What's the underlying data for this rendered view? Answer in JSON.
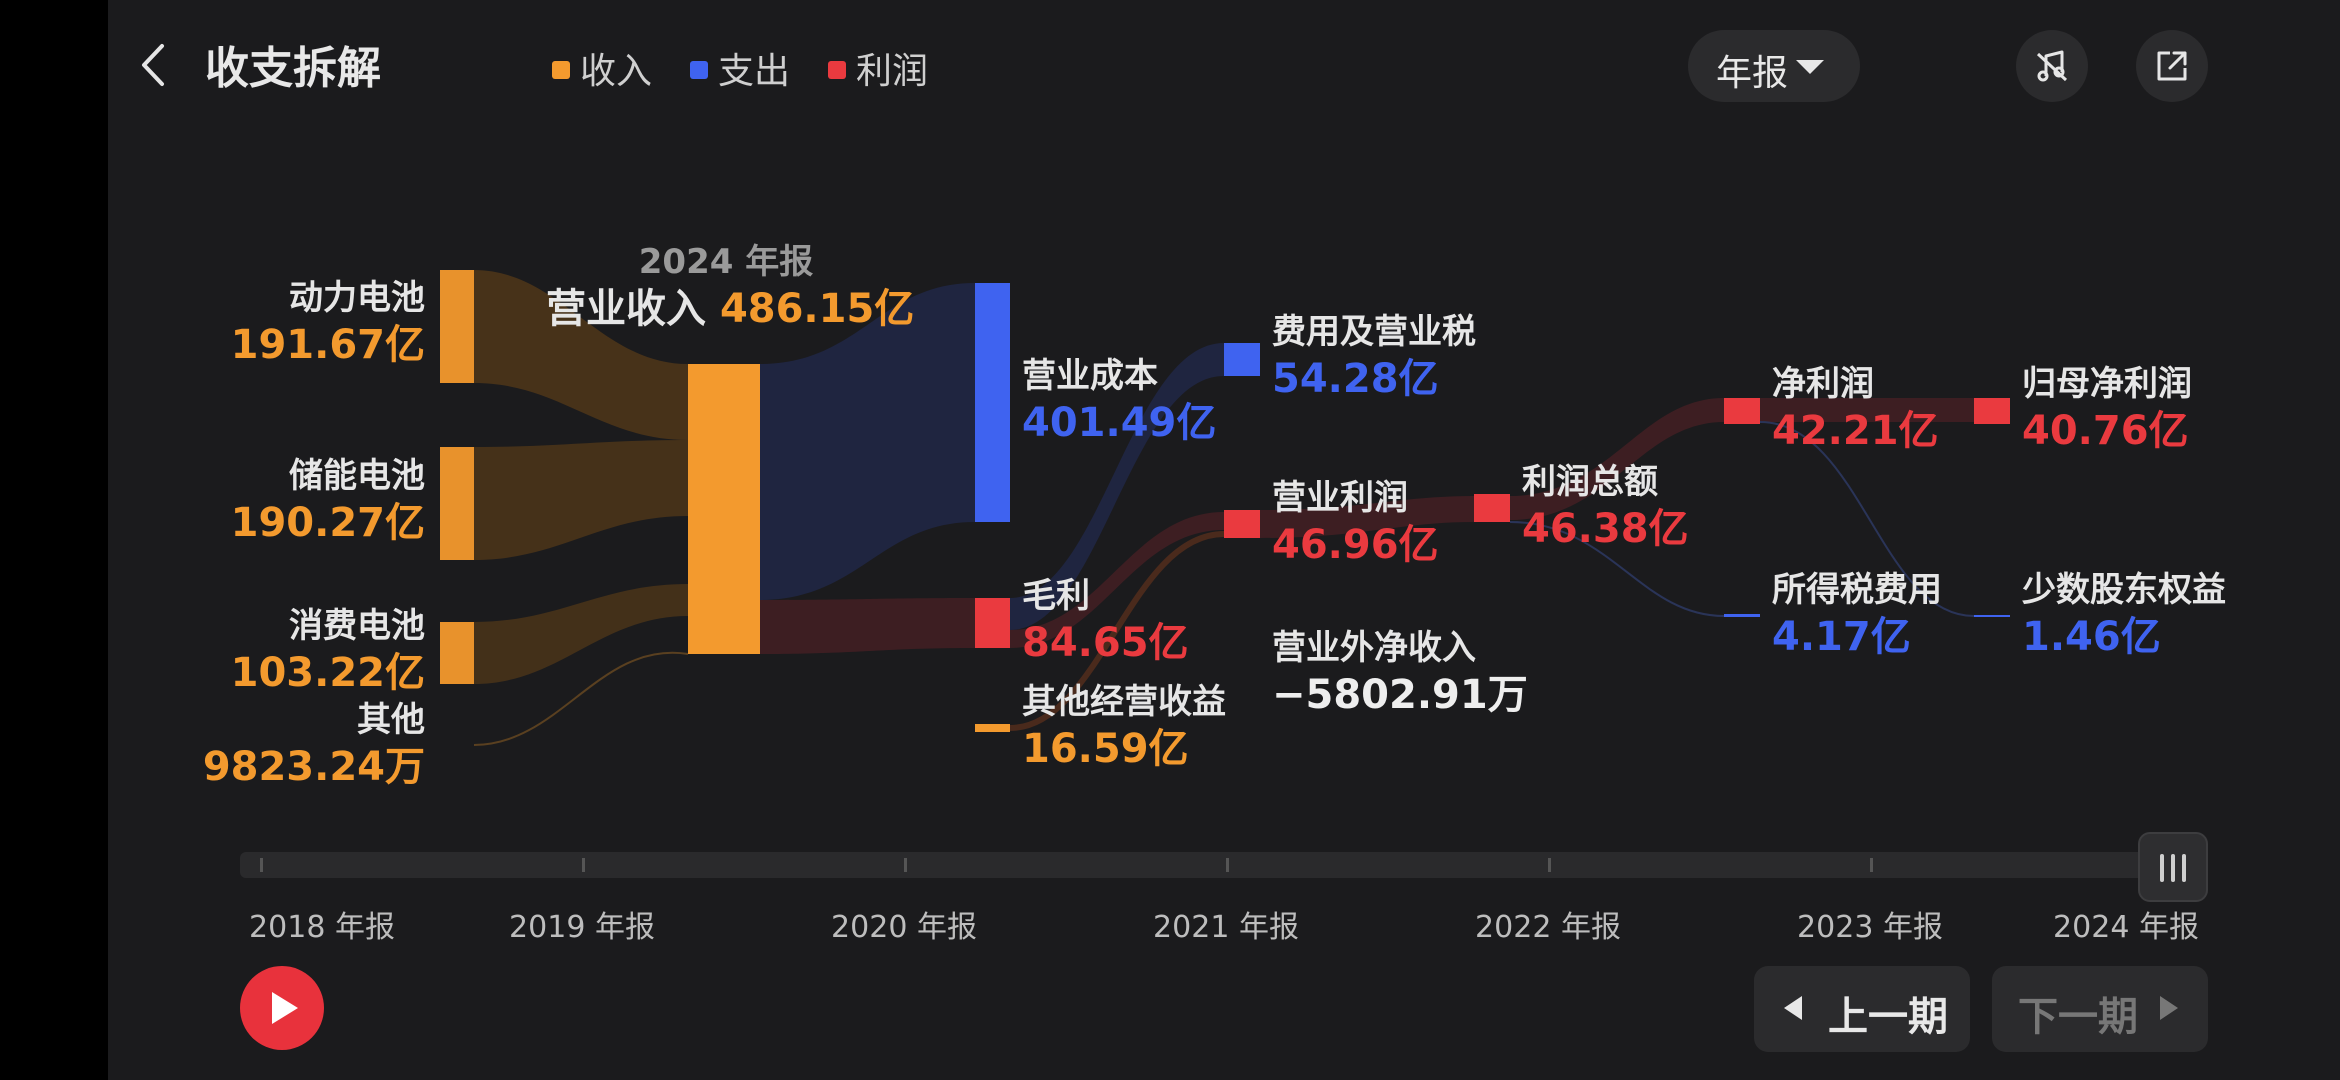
{
  "header": {
    "title": "收支拆解",
    "legend": [
      {
        "label": "收入",
        "color": "#f39a2e"
      },
      {
        "label": "支出",
        "color": "#3f63f0"
      },
      {
        "label": "利润",
        "color": "#ea3a3f"
      }
    ],
    "period_selector": "年报",
    "icons": [
      "back-icon",
      "chevron-down-icon",
      "music-note-icon",
      "share-icon"
    ]
  },
  "chart_data": {
    "type": "sankey",
    "period": "2024 年报",
    "title_label": "营业收入",
    "title_value": "486.15亿",
    "nodes": [
      {
        "id": "power",
        "name": "动力电池",
        "value": "191.67亿",
        "kind": "income"
      },
      {
        "id": "storage",
        "name": "储能电池",
        "value": "190.27亿",
        "kind": "income"
      },
      {
        "id": "consumer",
        "name": "消费电池",
        "value": "103.22亿",
        "kind": "income"
      },
      {
        "id": "other",
        "name": "其他",
        "value": "9823.24万",
        "kind": "income"
      },
      {
        "id": "revenue",
        "name": "营业收入",
        "value": "486.15亿",
        "kind": "income"
      },
      {
        "id": "cost",
        "name": "营业成本",
        "value": "401.49亿",
        "kind": "expense"
      },
      {
        "id": "gross",
        "name": "毛利",
        "value": "84.65亿",
        "kind": "profit"
      },
      {
        "id": "otherop",
        "name": "其他经营收益",
        "value": "16.59亿",
        "kind": "income"
      },
      {
        "id": "fees",
        "name": "费用及营业税",
        "value": "54.28亿",
        "kind": "expense"
      },
      {
        "id": "opprofit",
        "name": "营业利润",
        "value": "46.96亿",
        "kind": "profit"
      },
      {
        "id": "nonop",
        "name": "营业外净收入",
        "value": "−5802.91万",
        "kind": "neutral"
      },
      {
        "id": "total",
        "name": "利润总额",
        "value": "46.38亿",
        "kind": "profit"
      },
      {
        "id": "net",
        "name": "净利润",
        "value": "42.21亿",
        "kind": "profit"
      },
      {
        "id": "tax",
        "name": "所得税费用",
        "value": "4.17亿",
        "kind": "expense"
      },
      {
        "id": "parent",
        "name": "归母净利润",
        "value": "40.76亿",
        "kind": "profit"
      },
      {
        "id": "minority",
        "name": "少数股东权益",
        "value": "1.46亿",
        "kind": "expense"
      }
    ],
    "links": [
      {
        "from": "power",
        "to": "revenue",
        "value": 191.67
      },
      {
        "from": "storage",
        "to": "revenue",
        "value": 190.27
      },
      {
        "from": "consumer",
        "to": "revenue",
        "value": 103.22
      },
      {
        "from": "other",
        "to": "revenue",
        "value": 0.98
      },
      {
        "from": "revenue",
        "to": "cost",
        "value": 401.49
      },
      {
        "from": "revenue",
        "to": "gross",
        "value": 84.65
      },
      {
        "from": "gross",
        "to": "fees",
        "value": 54.28
      },
      {
        "from": "gross",
        "to": "opprofit",
        "value": 30.37
      },
      {
        "from": "otherop",
        "to": "opprofit",
        "value": 16.59
      },
      {
        "from": "opprofit",
        "to": "total",
        "value": 46.38
      },
      {
        "from": "total",
        "to": "net",
        "value": 42.21
      },
      {
        "from": "total",
        "to": "tax",
        "value": 4.17
      },
      {
        "from": "net",
        "to": "parent",
        "value": 40.76
      },
      {
        "from": "net",
        "to": "minority",
        "value": 1.46
      }
    ]
  },
  "timeline": {
    "labels": [
      "2018 年报",
      "2019 年报",
      "2020 年报",
      "2021 年报",
      "2022 年报",
      "2023 年报",
      "2024 年报"
    ],
    "selected": "2024 年报"
  },
  "controls": {
    "prev_label": "上一期",
    "next_label": "下一期"
  }
}
